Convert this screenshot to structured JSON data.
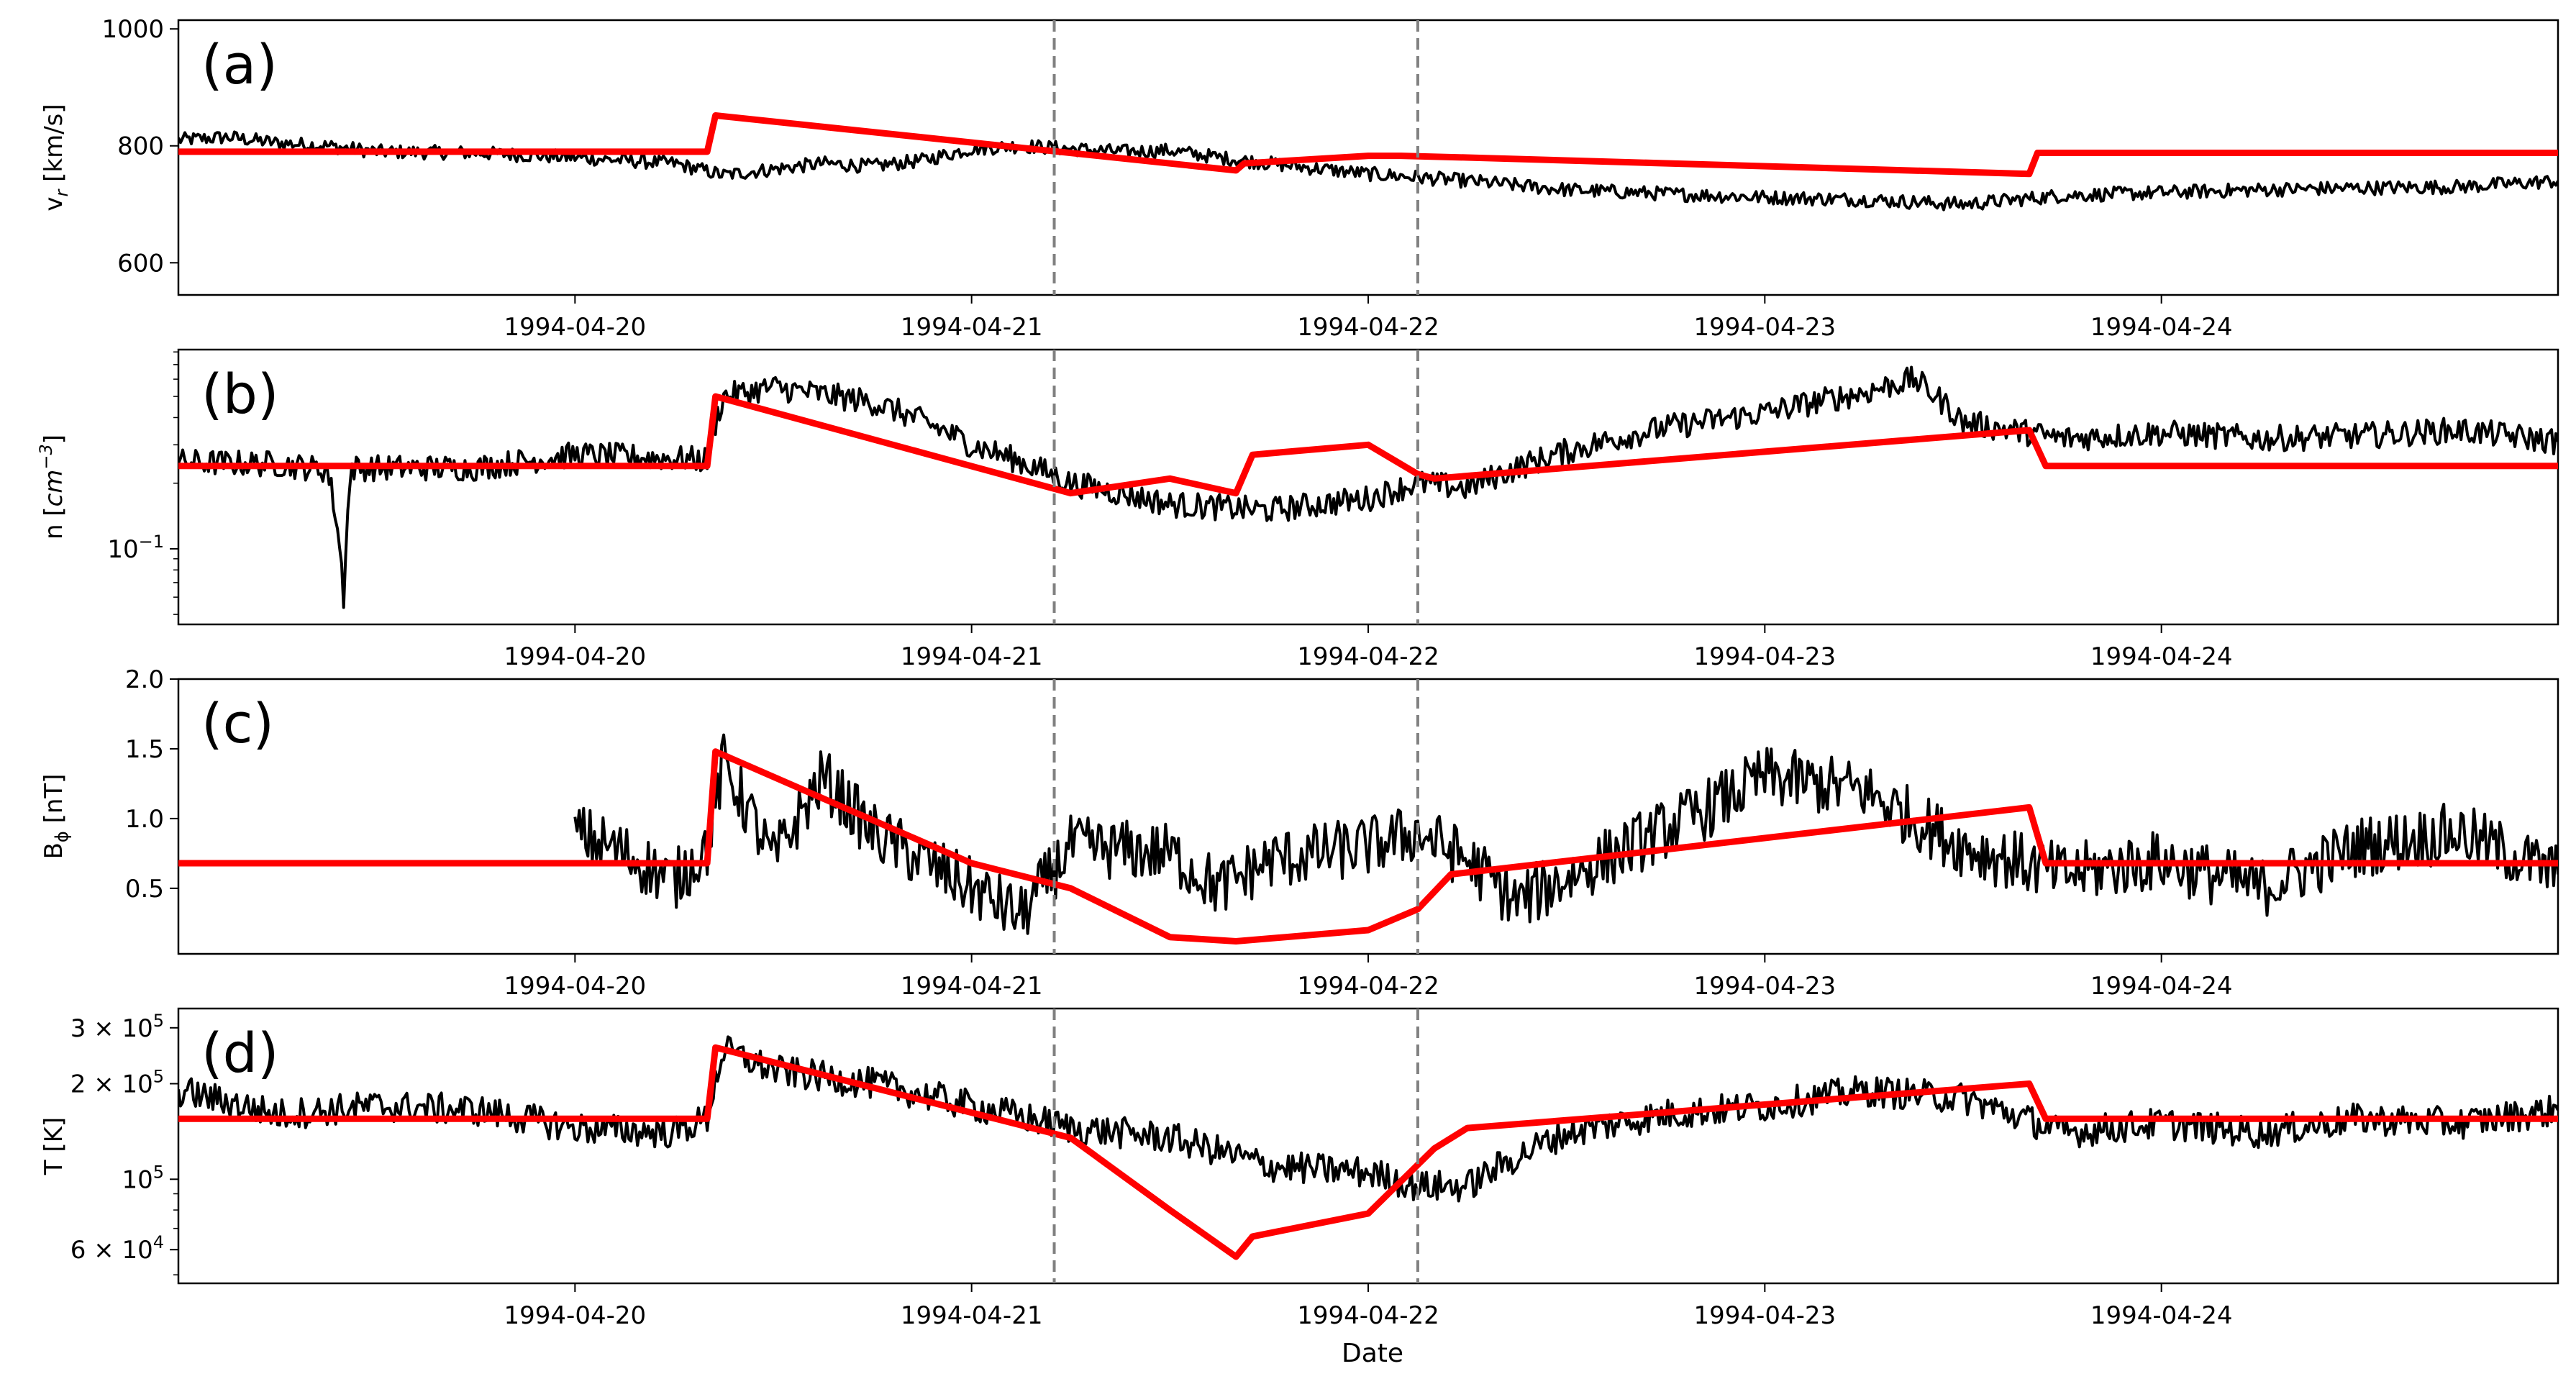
{
  "figure": {
    "xlabel": "Date",
    "dashed_lines": [
      "1994-04-21 05:00",
      "1994-04-22 03:00"
    ],
    "x_range": [
      "1994-04-19 00:00",
      "1994-04-25 00:00"
    ],
    "x_ticks": [
      "1994-04-20",
      "1994-04-21",
      "1994-04-22",
      "1994-04-23",
      "1994-04-24"
    ],
    "colors": {
      "observed": "#000000",
      "model": "#ff0000",
      "dashed": "#808080"
    }
  },
  "chart_data": [
    {
      "type": "line",
      "panel_label": "(a)",
      "ylabel": "v_r [km/s]",
      "ylabel_main": "v",
      "ylabel_sub": "r",
      "ylabel_rest": " [km/s]",
      "yscale": "linear",
      "ylim": [
        545,
        1015
      ],
      "yticks": [
        {
          "value": 600,
          "label": "600"
        },
        {
          "value": 800,
          "label": "800"
        },
        {
          "value": 1000,
          "label": "1000"
        }
      ],
      "series": [
        {
          "role": "observed",
          "points": [
            [
              "1994-04-19 00:00",
              810
            ],
            [
              "1994-04-19 03:00",
              815
            ],
            [
              "1994-04-19 06:00",
              805
            ],
            [
              "1994-04-19 09:00",
              800
            ],
            [
              "1994-04-19 12:00",
              790
            ],
            [
              "1994-04-19 18:00",
              788
            ],
            [
              "1994-04-20 00:00",
              780
            ],
            [
              "1994-04-20 06:00",
              770
            ],
            [
              "1994-04-20 09:00",
              750
            ],
            [
              "1994-04-20 12:00",
              760
            ],
            [
              "1994-04-20 15:00",
              770
            ],
            [
              "1994-04-20 18:00",
              765
            ],
            [
              "1994-04-20 21:00",
              775
            ],
            [
              "1994-04-21 00:00",
              795
            ],
            [
              "1994-04-21 03:00",
              800
            ],
            [
              "1994-04-21 06:00",
              795
            ],
            [
              "1994-04-21 09:00",
              790
            ],
            [
              "1994-04-21 12:00",
              792
            ],
            [
              "1994-04-21 15:00",
              780
            ],
            [
              "1994-04-21 18:00",
              770
            ],
            [
              "1994-04-22 00:00",
              752
            ],
            [
              "1994-04-22 06:00",
              740
            ],
            [
              "1994-04-22 12:00",
              725
            ],
            [
              "1994-04-22 18:00",
              718
            ],
            [
              "1994-04-23 00:00",
              712
            ],
            [
              "1994-04-23 06:00",
              708
            ],
            [
              "1994-04-23 12:00",
              700
            ],
            [
              "1994-04-23 18:00",
              715
            ],
            [
              "1994-04-24 00:00",
              720
            ],
            [
              "1994-04-24 06:00",
              725
            ],
            [
              "1994-04-24 12:00",
              728
            ],
            [
              "1994-04-24 18:00",
              730
            ],
            [
              "1994-04-25 00:00",
              740
            ]
          ]
        },
        {
          "role": "model",
          "points": [
            [
              "1994-04-19 00:00",
              790
            ],
            [
              "1994-04-20 08:00",
              790
            ],
            [
              "1994-04-20 08:30",
              852
            ],
            [
              "1994-04-21 16:00",
              758
            ],
            [
              "1994-04-21 16:30",
              770
            ],
            [
              "1994-04-22 00:00",
              783
            ],
            [
              "1994-04-22 02:00",
              783
            ],
            [
              "1994-04-22 06:00",
              780
            ],
            [
              "1994-04-23 16:00",
              752
            ],
            [
              "1994-04-23 16:30",
              788
            ],
            [
              "1994-04-25 00:00",
              788
            ]
          ]
        }
      ]
    },
    {
      "type": "line",
      "panel_label": "(b)",
      "ylabel": "n [cm^-3]",
      "ylabel_main": "n [",
      "ylabel_it": "cm",
      "ylabel_sup": "−3",
      "ylabel_rest": "]",
      "yscale": "log",
      "ylim": [
        0.045,
        0.82
      ],
      "yticks": [
        {
          "value": 0.1,
          "base": "10",
          "exp": "−1"
        }
      ],
      "series": [
        {
          "role": "observed",
          "points": [
            [
              "1994-04-19 00:00",
              0.25
            ],
            [
              "1994-04-19 06:00",
              0.245
            ],
            [
              "1994-04-19 09:00",
              0.23
            ],
            [
              "1994-04-19 10:00",
              0.06
            ],
            [
              "1994-04-19 10:30",
              0.235
            ],
            [
              "1994-04-19 18:00",
              0.235
            ],
            [
              "1994-04-20 00:00",
              0.27
            ],
            [
              "1994-04-20 06:00",
              0.26
            ],
            [
              "1994-04-20 08:00",
              0.255
            ],
            [
              "1994-04-20 09:00",
              0.5
            ],
            [
              "1994-04-20 12:00",
              0.55
            ],
            [
              "1994-04-20 18:00",
              0.47
            ],
            [
              "1994-04-21 00:00",
              0.3
            ],
            [
              "1994-04-21 06:00",
              0.2
            ],
            [
              "1994-04-21 12:00",
              0.16
            ],
            [
              "1994-04-21 18:00",
              0.15
            ],
            [
              "1994-04-22 00:00",
              0.17
            ],
            [
              "1994-04-22 03:00",
              0.2
            ],
            [
              "1994-04-22 06:00",
              0.19
            ],
            [
              "1994-04-22 12:00",
              0.28
            ],
            [
              "1994-04-22 18:00",
              0.36
            ],
            [
              "1994-04-23 00:00",
              0.42
            ],
            [
              "1994-04-23 06:00",
              0.52
            ],
            [
              "1994-04-23 09:00",
              0.6
            ],
            [
              "1994-04-23 12:00",
              0.38
            ],
            [
              "1994-04-23 18:00",
              0.32
            ],
            [
              "1994-04-24 00:00",
              0.34
            ],
            [
              "1994-04-24 06:00",
              0.32
            ],
            [
              "1994-04-24 12:00",
              0.33
            ],
            [
              "1994-04-24 18:00",
              0.35
            ],
            [
              "1994-04-25 00:00",
              0.31
            ]
          ]
        },
        {
          "role": "model",
          "points": [
            [
              "1994-04-19 00:00",
              0.24
            ],
            [
              "1994-04-20 08:00",
              0.24
            ],
            [
              "1994-04-20 08:30",
              0.5
            ],
            [
              "1994-04-21 06:00",
              0.18
            ],
            [
              "1994-04-21 12:00",
              0.21
            ],
            [
              "1994-04-21 16:00",
              0.18
            ],
            [
              "1994-04-21 17:00",
              0.27
            ],
            [
              "1994-04-22 00:00",
              0.3
            ],
            [
              "1994-04-22 03:00",
              0.22
            ],
            [
              "1994-04-22 04:00",
              0.21
            ],
            [
              "1994-04-23 16:00",
              0.35
            ],
            [
              "1994-04-23 17:00",
              0.24
            ],
            [
              "1994-04-25 00:00",
              0.24
            ]
          ]
        }
      ]
    },
    {
      "type": "line",
      "panel_label": "(c)",
      "ylabel": "B_phi [nT]",
      "ylabel_main": "B",
      "ylabel_sub": "ϕ",
      "ylabel_rest": " [nT]",
      "yscale": "linear",
      "ylim": [
        0.03,
        2.0
      ],
      "yticks": [
        {
          "value": 0.5,
          "label": "0.5"
        },
        {
          "value": 1.0,
          "label": "1.0"
        },
        {
          "value": 1.5,
          "label": "1.5"
        },
        {
          "value": 2.0,
          "label": "2.0"
        }
      ],
      "series": [
        {
          "role": "observed",
          "points": [
            [
              "1994-04-20 00:00",
              0.9
            ],
            [
              "1994-04-20 03:00",
              0.75
            ],
            [
              "1994-04-20 06:00",
              0.55
            ],
            [
              "1994-04-20 08:00",
              0.8
            ],
            [
              "1994-04-20 09:00",
              1.4
            ],
            [
              "1994-04-20 12:00",
              0.7
            ],
            [
              "1994-04-20 15:00",
              1.3
            ],
            [
              "1994-04-20 18:00",
              0.9
            ],
            [
              "1994-04-21 00:00",
              0.5
            ],
            [
              "1994-04-21 03:00",
              0.3
            ],
            [
              "1994-04-21 06:00",
              0.8
            ],
            [
              "1994-04-21 12:00",
              0.75
            ],
            [
              "1994-04-21 15:00",
              0.5
            ],
            [
              "1994-04-21 18:00",
              0.7
            ],
            [
              "1994-04-22 00:00",
              0.8
            ],
            [
              "1994-04-22 03:00",
              0.9
            ],
            [
              "1994-04-22 06:00",
              0.7
            ],
            [
              "1994-04-22 09:00",
              0.4
            ],
            [
              "1994-04-22 15:00",
              0.75
            ],
            [
              "1994-04-22 21:00",
              1.1
            ],
            [
              "1994-04-23 00:00",
              1.3
            ],
            [
              "1994-04-23 06:00",
              1.2
            ],
            [
              "1994-04-23 12:00",
              0.8
            ],
            [
              "1994-04-23 18:00",
              0.6
            ],
            [
              "1994-04-24 00:00",
              0.7
            ],
            [
              "1994-04-24 06:00",
              0.5
            ],
            [
              "1994-04-24 12:00",
              0.8
            ],
            [
              "1994-04-24 18:00",
              0.9
            ],
            [
              "1994-04-25 00:00",
              0.6
            ]
          ]
        },
        {
          "role": "model",
          "points": [
            [
              "1994-04-19 00:00",
              0.68
            ],
            [
              "1994-04-20 08:00",
              0.68
            ],
            [
              "1994-04-20 08:30",
              1.48
            ],
            [
              "1994-04-21 00:00",
              0.68
            ],
            [
              "1994-04-21 06:00",
              0.5
            ],
            [
              "1994-04-21 12:00",
              0.15
            ],
            [
              "1994-04-21 16:00",
              0.12
            ],
            [
              "1994-04-22 00:00",
              0.2
            ],
            [
              "1994-04-22 03:00",
              0.35
            ],
            [
              "1994-04-22 05:00",
              0.6
            ],
            [
              "1994-04-23 16:00",
              1.08
            ],
            [
              "1994-04-23 17:00",
              0.68
            ],
            [
              "1994-04-25 00:00",
              0.68
            ]
          ]
        }
      ]
    },
    {
      "type": "line",
      "panel_label": "(d)",
      "ylabel": "T [K]",
      "yscale": "log",
      "ylim": [
        47000,
        345000
      ],
      "yticks": [
        {
          "value": 60000,
          "mant": "6 × ",
          "base": "10",
          "exp": "4"
        },
        {
          "value": 100000,
          "mant": "",
          "base": "10",
          "exp": "5"
        },
        {
          "value": 200000,
          "mant": "2 × ",
          "base": "10",
          "exp": "5"
        },
        {
          "value": 300000,
          "mant": "3 × ",
          "base": "10",
          "exp": "5"
        }
      ],
      "series": [
        {
          "role": "observed",
          "points": [
            [
              "1994-04-19 00:00",
              190000
            ],
            [
              "1994-04-19 06:00",
              160000
            ],
            [
              "1994-04-19 12:00",
              170000
            ],
            [
              "1994-04-19 18:00",
              165000
            ],
            [
              "1994-04-20 00:00",
              145000
            ],
            [
              "1994-04-20 06:00",
              140000
            ],
            [
              "1994-04-20 08:00",
              155000
            ],
            [
              "1994-04-20 09:00",
              255000
            ],
            [
              "1994-04-20 12:00",
              220000
            ],
            [
              "1994-04-20 18:00",
              200000
            ],
            [
              "1994-04-21 00:00",
              170000
            ],
            [
              "1994-04-21 06:00",
              145000
            ],
            [
              "1994-04-21 12:00",
              135000
            ],
            [
              "1994-04-21 18:00",
              110000
            ],
            [
              "1994-04-22 00:00",
              105000
            ],
            [
              "1994-04-22 03:00",
              95000
            ],
            [
              "1994-04-22 06:00",
              95000
            ],
            [
              "1994-04-22 12:00",
              140000
            ],
            [
              "1994-04-22 18:00",
              160000
            ],
            [
              "1994-04-23 00:00",
              170000
            ],
            [
              "1994-04-23 06:00",
              190000
            ],
            [
              "1994-04-23 12:00",
              180000
            ],
            [
              "1994-04-23 18:00",
              140000
            ],
            [
              "1994-04-24 00:00",
              150000
            ],
            [
              "1994-04-24 06:00",
              140000
            ],
            [
              "1994-04-24 12:00",
              155000
            ],
            [
              "1994-04-24 18:00",
              150000
            ],
            [
              "1994-04-25 00:00",
              165000
            ]
          ]
        },
        {
          "role": "model",
          "points": [
            [
              "1994-04-19 00:00",
              155000
            ],
            [
              "1994-04-20 08:00",
              155000
            ],
            [
              "1994-04-20 08:30",
              260000
            ],
            [
              "1994-04-21 06:00",
              135000
            ],
            [
              "1994-04-21 12:00",
              80000
            ],
            [
              "1994-04-21 16:00",
              57000
            ],
            [
              "1994-04-21 17:00",
              66000
            ],
            [
              "1994-04-22 00:00",
              78000
            ],
            [
              "1994-04-22 04:00",
              125000
            ],
            [
              "1994-04-22 06:00",
              145000
            ],
            [
              "1994-04-23 16:00",
              200000
            ],
            [
              "1994-04-23 17:00",
              155000
            ],
            [
              "1994-04-25 00:00",
              155000
            ]
          ]
        }
      ]
    }
  ]
}
